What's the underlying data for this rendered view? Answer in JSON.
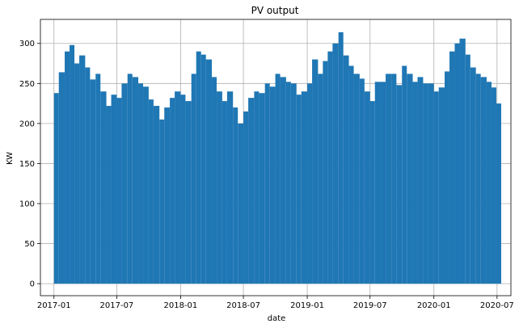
{
  "chart_data": {
    "type": "bar",
    "title": "PV output",
    "xlabel": "date",
    "ylabel": "KW",
    "xlim": [
      "2016-11-23",
      "2020-08-10"
    ],
    "ylim": [
      -15,
      330
    ],
    "grid": true,
    "color": "#1f77b4",
    "x_ticks": [
      {
        "value": "2017-01-01",
        "label": "2017-01"
      },
      {
        "value": "2017-07-01",
        "label": "2017-07"
      },
      {
        "value": "2018-01-01",
        "label": "2018-01"
      },
      {
        "value": "2018-07-01",
        "label": "2018-07"
      },
      {
        "value": "2019-01-01",
        "label": "2019-01"
      },
      {
        "value": "2019-07-01",
        "label": "2019-07"
      },
      {
        "value": "2020-01-01",
        "label": "2020-01"
      },
      {
        "value": "2020-07-01",
        "label": "2020-07"
      }
    ],
    "y_ticks": [
      0,
      50,
      100,
      150,
      200,
      250,
      300
    ],
    "series": [
      {
        "x": [
          "2017-01-01",
          "2017-01-15",
          "2017-02-01",
          "2017-02-15",
          "2017-03-01",
          "2017-03-15",
          "2017-04-01",
          "2017-04-15",
          "2017-05-01",
          "2017-05-15",
          "2017-06-01",
          "2017-06-15",
          "2017-07-01",
          "2017-07-15",
          "2017-08-01",
          "2017-08-15",
          "2017-09-01",
          "2017-09-15",
          "2017-10-01",
          "2017-10-15",
          "2017-11-01",
          "2017-11-15",
          "2017-12-01",
          "2017-12-15",
          "2018-01-01",
          "2018-01-15",
          "2018-02-01",
          "2018-02-15",
          "2018-03-01",
          "2018-03-15",
          "2018-04-01",
          "2018-04-15",
          "2018-05-01",
          "2018-05-15",
          "2018-06-01",
          "2018-06-15",
          "2018-07-01",
          "2018-07-15",
          "2018-08-01",
          "2018-08-15",
          "2018-09-01",
          "2018-09-15",
          "2018-10-01",
          "2018-10-15",
          "2018-11-01",
          "2018-11-15",
          "2018-12-01",
          "2018-12-15",
          "2019-01-01",
          "2019-01-15",
          "2019-02-01",
          "2019-02-15",
          "2019-03-01",
          "2019-03-15",
          "2019-04-01",
          "2019-04-15",
          "2019-05-01",
          "2019-05-15",
          "2019-06-01",
          "2019-06-15",
          "2019-07-01",
          "2019-07-15",
          "2019-08-01",
          "2019-08-15",
          "2019-09-01",
          "2019-09-15",
          "2019-10-01",
          "2019-10-15",
          "2019-11-01",
          "2019-11-15",
          "2019-12-01",
          "2019-12-15",
          "2020-01-01",
          "2020-01-15",
          "2020-02-01",
          "2020-02-15",
          "2020-03-01",
          "2020-03-15",
          "2020-04-01",
          "2020-04-15",
          "2020-05-01",
          "2020-05-15",
          "2020-06-01",
          "2020-06-15",
          "2020-06-29"
        ],
        "values": [
          238,
          264,
          290,
          298,
          275,
          285,
          270,
          255,
          262,
          240,
          222,
          236,
          232,
          250,
          262,
          258,
          250,
          246,
          230,
          222,
          205,
          220,
          232,
          240,
          236,
          228,
          262,
          290,
          286,
          280,
          258,
          240,
          228,
          240,
          220,
          200,
          215,
          232,
          240,
          238,
          250,
          246,
          262,
          258,
          252,
          250,
          236,
          240,
          250,
          280,
          262,
          278,
          290,
          300,
          314,
          285,
          272,
          262,
          256,
          240,
          228,
          252,
          252,
          262,
          262,
          248,
          272,
          262,
          252,
          258,
          250,
          250,
          240,
          245,
          265,
          290,
          300,
          306,
          286,
          270,
          262,
          258,
          252,
          245,
          225
        ]
      }
    ]
  }
}
